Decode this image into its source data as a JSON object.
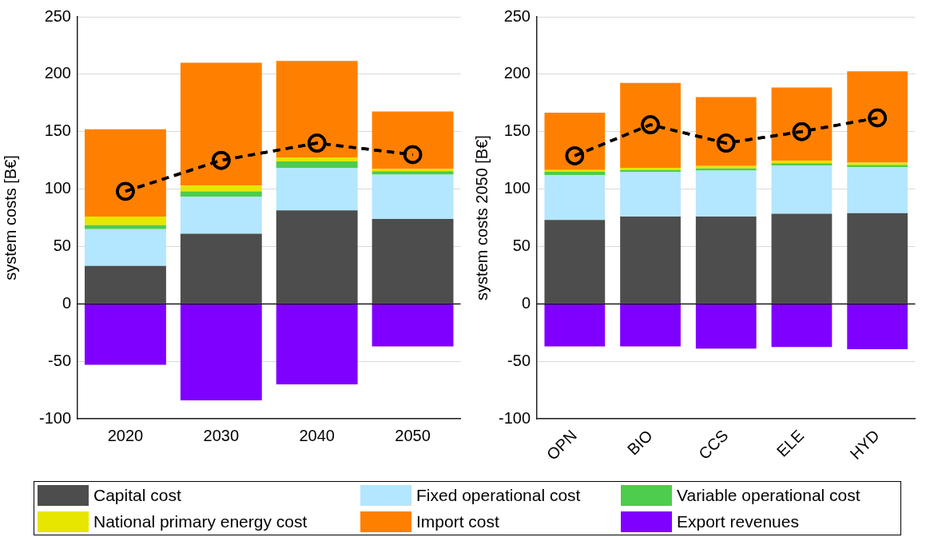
{
  "chart_data": [
    {
      "type": "bar",
      "stacked": true,
      "ylabel": "system costs [B€]",
      "categories": [
        "2020",
        "2030",
        "2040",
        "2050"
      ],
      "ylim": [
        -100,
        250
      ],
      "yticks": [
        -100,
        -50,
        0,
        50,
        100,
        150,
        200,
        250
      ],
      "grid": "y",
      "legend": "bottom",
      "ref_lines": [
        {
          "axis": "y",
          "value": 0,
          "color": "#000000"
        }
      ],
      "series": [
        {
          "name": "Capital cost",
          "color": "#4d4d4d",
          "values": [
            33,
            61,
            81.5,
            74
          ]
        },
        {
          "name": "Fixed operational cost",
          "color": "#b3e6ff",
          "values": [
            32,
            32.5,
            37,
            38.5
          ]
        },
        {
          "name": "Variable operational cost",
          "color": "#4dcc4d",
          "values": [
            3.5,
            4.5,
            5.5,
            3
          ]
        },
        {
          "name": "National primary energy cost",
          "color": "#e6e600",
          "values": [
            7.5,
            5,
            3.5,
            2
          ]
        },
        {
          "name": "Import cost",
          "color": "#ff8000",
          "values": [
            76,
            107,
            84,
            50
          ]
        },
        {
          "name": "Export revenues",
          "color": "#8000ff",
          "values": [
            -53,
            -84,
            -70,
            -37
          ]
        },
        {
          "type": "line",
          "color": "#000000",
          "marker": "circle",
          "line_style": "dashed",
          "values": [
            98,
            125,
            140,
            130
          ]
        }
      ]
    },
    {
      "type": "bar",
      "stacked": true,
      "ylabel": "system costs 2050 [B€]",
      "categories": [
        "OPN",
        "BIO",
        "CCS",
        "ELE",
        "HYD"
      ],
      "ylim": [
        -100,
        250
      ],
      "yticks": [
        -100,
        -50,
        0,
        50,
        100,
        150,
        200,
        250
      ],
      "grid": "y",
      "ref_lines": [
        {
          "axis": "y",
          "value": 0,
          "color": "#000000"
        }
      ],
      "series": [
        {
          "color": "#4d4d4d",
          "values": [
            73,
            76,
            76,
            78.5,
            79
          ]
        },
        {
          "color": "#b3e6ff",
          "values": [
            39,
            39,
            40,
            42,
            40
          ]
        },
        {
          "color": "#4dcc4d",
          "values": [
            3,
            1.5,
            2,
            2,
            2
          ]
        },
        {
          "color": "#e6e600",
          "values": [
            1.5,
            2,
            2,
            2,
            2
          ]
        },
        {
          "color": "#ff8000",
          "values": [
            50,
            74,
            60,
            64,
            79.5
          ]
        },
        {
          "color": "#8000ff",
          "values": [
            -37,
            -37,
            -39,
            -37.5,
            -39.5
          ]
        },
        {
          "type": "line",
          "color": "#000000",
          "marker": "circle",
          "line_style": "dashed",
          "values": [
            129,
            156,
            140,
            150,
            162
          ]
        }
      ]
    }
  ]
}
